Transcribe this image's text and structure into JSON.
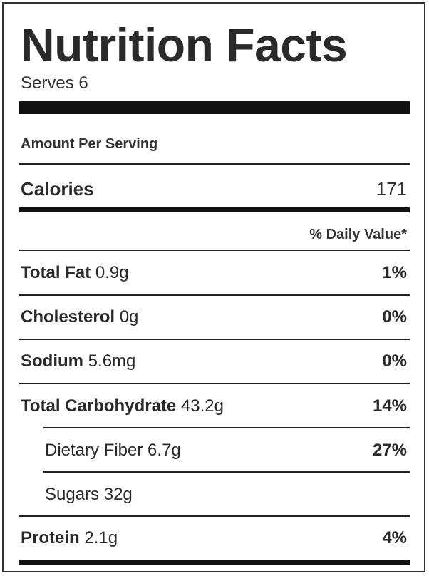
{
  "label": {
    "title": "Nutrition Facts",
    "serves": "Serves 6",
    "amount_per_serving": "Amount Per Serving",
    "calories_label": "Calories",
    "calories_value": "171",
    "daily_value_header": "% Daily Value*"
  },
  "nutrients": [
    {
      "name": "Total Fat",
      "amount": "0.9g",
      "pct": "1%"
    },
    {
      "name": "Cholesterol",
      "amount": "0g",
      "pct": "0%"
    },
    {
      "name": "Sodium",
      "amount": "5.6mg",
      "pct": "0%"
    },
    {
      "name": "Total Carbohydrate",
      "amount": "43.2g",
      "pct": "14%"
    },
    {
      "name": "Dietary Fiber",
      "amount": "6.7g",
      "pct": "27%"
    },
    {
      "name": "Sugars",
      "amount": "32g",
      "pct": ""
    },
    {
      "name": "Protein",
      "amount": "2.1g",
      "pct": "4%"
    }
  ]
}
